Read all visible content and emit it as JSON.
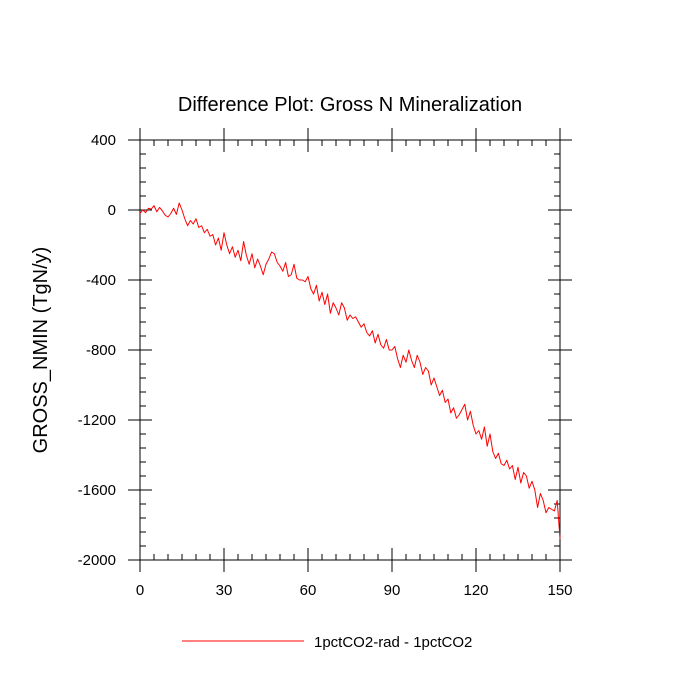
{
  "chart_data": {
    "type": "line",
    "title": "Difference Plot: Gross N Mineralization",
    "xlabel": "",
    "ylabel": "GROSS_NMIN  (TgN/y)",
    "xlim": [
      0,
      150
    ],
    "ylim": [
      -2000,
      400
    ],
    "xticks": [
      0,
      30,
      60,
      90,
      120,
      150
    ],
    "xtick_labels": [
      "0",
      "30",
      "60",
      "90",
      "120",
      "150"
    ],
    "yticks": [
      400,
      0,
      -400,
      -800,
      -1200,
      -1600,
      -2000
    ],
    "ytick_labels": [
      "400",
      "0",
      "-400",
      "-800",
      "-1200",
      "-1600",
      "-2000"
    ],
    "grid": false,
    "legend_position": "bottom",
    "series": [
      {
        "name": "1pctCO2-rad - 1pctCO2",
        "color": "#ff0000",
        "x": [
          0,
          1,
          2,
          3,
          4,
          5,
          6,
          7,
          8,
          9,
          10,
          11,
          12,
          13,
          14,
          15,
          16,
          17,
          18,
          19,
          20,
          21,
          22,
          23,
          24,
          25,
          26,
          27,
          28,
          29,
          30,
          31,
          32,
          33,
          34,
          35,
          36,
          37,
          38,
          39,
          40,
          41,
          42,
          43,
          44,
          45,
          46,
          47,
          48,
          49,
          50,
          51,
          52,
          53,
          54,
          55,
          56,
          57,
          58,
          59,
          60,
          61,
          62,
          63,
          64,
          65,
          66,
          67,
          68,
          69,
          70,
          71,
          72,
          73,
          74,
          75,
          76,
          77,
          78,
          79,
          80,
          81,
          82,
          83,
          84,
          85,
          86,
          87,
          88,
          89,
          90,
          91,
          92,
          93,
          94,
          95,
          96,
          97,
          98,
          99,
          100,
          101,
          102,
          103,
          104,
          105,
          106,
          107,
          108,
          109,
          110,
          111,
          112,
          113,
          114,
          115,
          116,
          117,
          118,
          119,
          120,
          121,
          122,
          123,
          124,
          125,
          126,
          127,
          128,
          129,
          130,
          131,
          132,
          133,
          134,
          135,
          136,
          137,
          138,
          139,
          140,
          141,
          142,
          143,
          144,
          145,
          146,
          147,
          148,
          149,
          150
        ],
        "y": [
          -20,
          0,
          -15,
          10,
          5,
          25,
          -10,
          15,
          -5,
          -30,
          -40,
          -20,
          10,
          -25,
          40,
          0,
          -50,
          -90,
          -60,
          -80,
          -50,
          -100,
          -90,
          -130,
          -110,
          -150,
          -140,
          -200,
          -160,
          -230,
          -130,
          -200,
          -250,
          -210,
          -270,
          -230,
          -290,
          -180,
          -260,
          -310,
          -250,
          -330,
          -280,
          -320,
          -370,
          -310,
          -280,
          -240,
          -250,
          -300,
          -320,
          -350,
          -300,
          -380,
          -370,
          -310,
          -390,
          -400,
          -400,
          -410,
          -380,
          -450,
          -480,
          -430,
          -520,
          -470,
          -540,
          -480,
          -590,
          -530,
          -560,
          -600,
          -530,
          -560,
          -630,
          -600,
          -620,
          -610,
          -640,
          -670,
          -650,
          -700,
          -720,
          -690,
          -760,
          -710,
          -770,
          -790,
          -740,
          -800,
          -800,
          -780,
          -850,
          -900,
          -830,
          -870,
          -800,
          -860,
          -900,
          -830,
          -870,
          -940,
          -900,
          -920,
          -1000,
          -960,
          -1010,
          -1060,
          -1030,
          -1100,
          -1080,
          -1160,
          -1130,
          -1190,
          -1170,
          -1140,
          -1110,
          -1200,
          -1150,
          -1230,
          -1280,
          -1260,
          -1310,
          -1240,
          -1350,
          -1280,
          -1380,
          -1420,
          -1390,
          -1450,
          -1460,
          -1430,
          -1480,
          -1460,
          -1540,
          -1470,
          -1560,
          -1500,
          -1520,
          -1590,
          -1550,
          -1600,
          -1700,
          -1620,
          -1660,
          -1730,
          -1700,
          -1710,
          -1720,
          -1660,
          -1880
        ]
      }
    ]
  }
}
